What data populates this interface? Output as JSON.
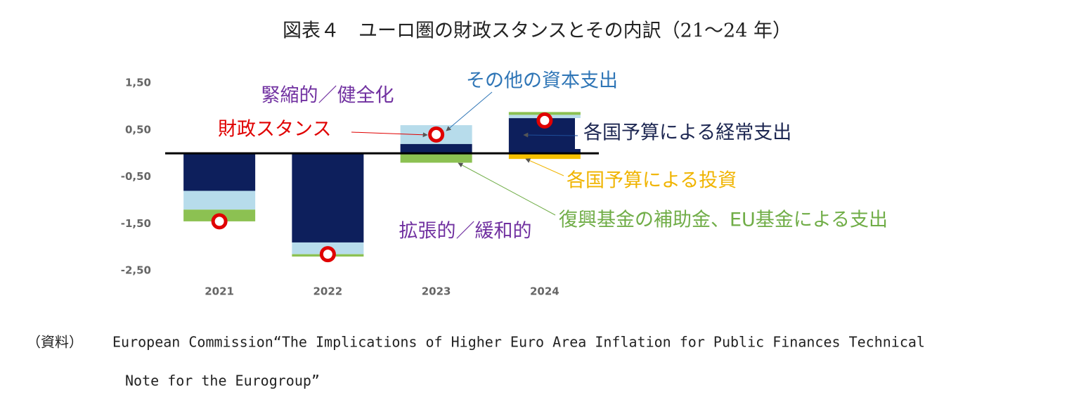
{
  "chart_data": {
    "type": "bar",
    "stacked": true,
    "title": "図表４　ユーロ圏の財政スタンスとその内訳（21～24 年）",
    "categories": [
      "2021",
      "2022",
      "2023",
      "2024"
    ],
    "series": [
      {
        "name": "各国予算による経常支出",
        "color": "#0d1f5c",
        "values": [
          -0.8,
          -1.9,
          0.2,
          0.75
        ]
      },
      {
        "name": "その他の資本支出",
        "color": "#b7dceb",
        "values": [
          -0.4,
          -0.25,
          0.4,
          0.07
        ]
      },
      {
        "name": "各国予算による投資",
        "color": "#f5c000",
        "values": [
          0,
          0,
          0,
          -0.12
        ]
      },
      {
        "name": "復興基金の補助金、EU基金による支出",
        "color": "#8cc152",
        "values": [
          -0.25,
          -0.05,
          -0.2,
          0.06
        ]
      }
    ],
    "stance": {
      "name": "財政スタンス",
      "color": "#e00000",
      "values": [
        -1.45,
        -2.15,
        0.4,
        0.7
      ]
    },
    "annotations": [
      {
        "text": "緊縮的／健全化",
        "color": "#7030a0"
      },
      {
        "text": "拡張的／緩和的",
        "color": "#7030a0"
      }
    ],
    "ylim": [
      -2.5,
      1.5
    ],
    "yticks": [
      {
        "value": 1.5,
        "label": "1,50"
      },
      {
        "value": 0.5,
        "label": "0,50"
      },
      {
        "value": -0.5,
        "label": "-0,50"
      },
      {
        "value": -1.5,
        "label": "-1,50"
      },
      {
        "value": -2.5,
        "label": "-2,50"
      }
    ],
    "grid": false
  },
  "source": {
    "label": "（資料）",
    "lines": [
      "European Commission“The Implications of Higher Euro Area Inflation for Public Finances Technical",
      "Note for the Eurogroup”"
    ]
  }
}
